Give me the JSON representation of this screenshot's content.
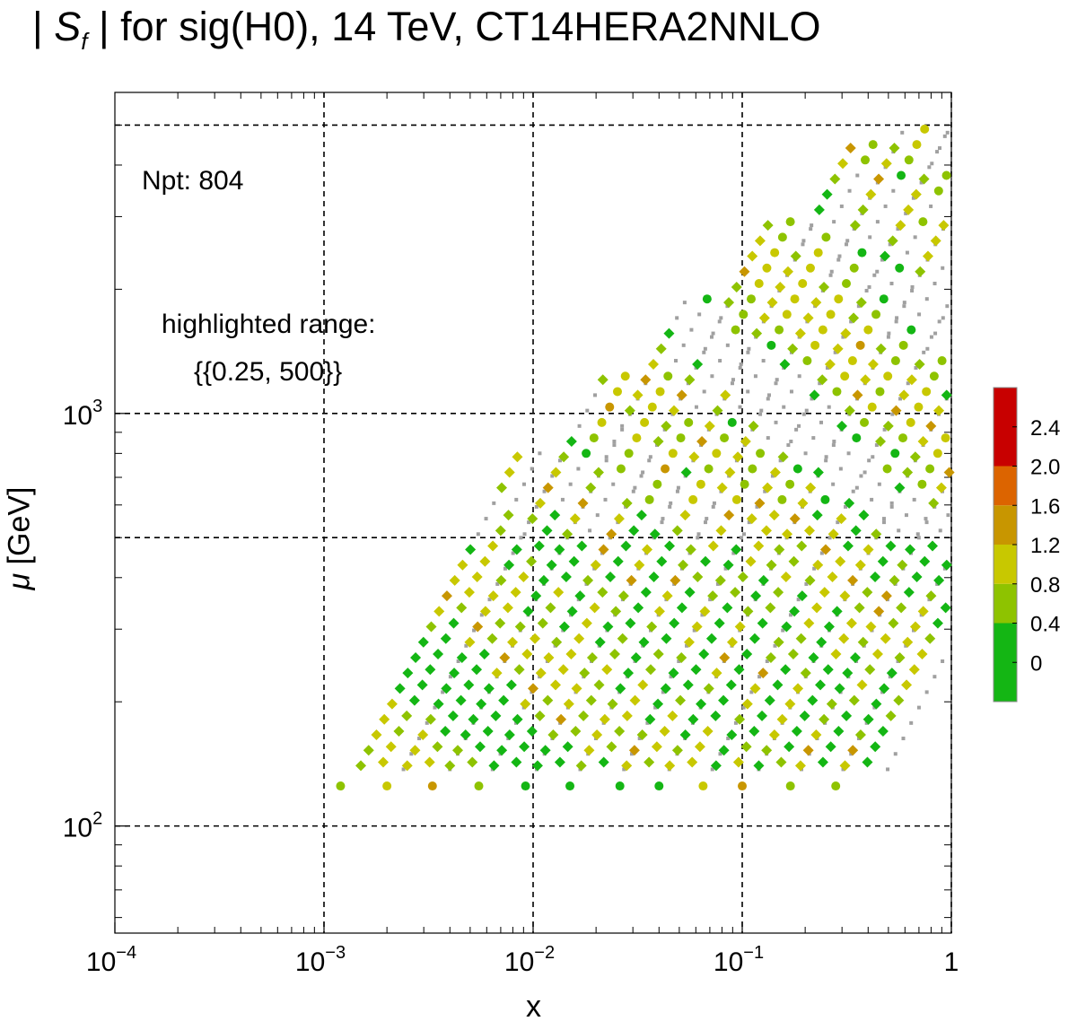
{
  "title": {
    "prefix": "| ",
    "var": "S",
    "sub": "f",
    "rest": " | for  sig(H0), 14 TeV, CT14HERA2NNLO"
  },
  "annotations": {
    "npt": "Npt: 804",
    "highlight_label": "highlighted range:",
    "highlight_value": "{{0.25, 500}}"
  },
  "axes": {
    "xlabel": "x",
    "ylabel_var": "μ",
    "ylabel_unit": " [GeV]"
  },
  "chart_data": {
    "type": "scatter",
    "x_scale": "log",
    "y_scale": "log",
    "xlim": [
      0.0001,
      1
    ],
    "ylim": [
      55,
      6000
    ],
    "x_ticks": [
      {
        "v": 0.0001,
        "b": "10",
        "e": "−4"
      },
      {
        "v": 0.001,
        "b": "10",
        "e": "−3"
      },
      {
        "v": 0.01,
        "b": "10",
        "e": "−2"
      },
      {
        "v": 0.1,
        "b": "10",
        "e": "−1"
      },
      {
        "v": 1,
        "b": "1",
        "e": ""
      }
    ],
    "y_ticks": [
      {
        "v": 100,
        "b": "10",
        "e": "2"
      },
      {
        "v": 1000,
        "b": "10",
        "e": "3"
      }
    ],
    "grid_x": [
      0.001,
      0.01,
      0.1,
      1
    ],
    "grid_y": [
      100,
      500,
      1000,
      5000
    ],
    "colorbar": {
      "bins": [
        {
          "from": -0.4,
          "to": 0.4,
          "color": "#14b614"
        },
        {
          "from": 0.4,
          "to": 0.8,
          "color": "#8ec300"
        },
        {
          "from": 0.8,
          "to": 1.2,
          "color": "#c8c800"
        },
        {
          "from": 1.2,
          "to": 1.6,
          "color": "#c89600"
        },
        {
          "from": 1.6,
          "to": 2.0,
          "color": "#dc6400"
        },
        {
          "from": 2.0,
          "to": 2.8,
          "color": "#c80000"
        }
      ],
      "ticks": [
        "2.4",
        "2.0",
        "1.6",
        "1.2",
        "0.8",
        "0.4",
        "0"
      ],
      "tick_values": [
        2.4,
        2.0,
        1.6,
        1.2,
        0.8,
        0.4,
        0.0
      ]
    },
    "grey_color": "#a0a0a0",
    "highlight": {
      "threshold": 0.25,
      "mu_max": 500
    },
    "bands": [
      {
        "shape": "circle",
        "mu": [
          125,
          125,
          125,
          125,
          125,
          125,
          125,
          125,
          125,
          125,
          125,
          125
        ],
        "x": [
          0.0012,
          0.002,
          0.0033,
          0.0055,
          0.0092,
          0.015,
          0.026,
          0.04,
          0.065,
          0.1,
          0.17,
          0.28
        ],
        "s": [
          0.6,
          0.9,
          1.4,
          0.7,
          0.3,
          0.1,
          0.2,
          0.1,
          0.8,
          1.5,
          0.7,
          0.6
        ]
      },
      {
        "shape": "diamond",
        "mu": [
          170,
          190,
          220,
          260,
          300,
          350,
          400,
          460
        ],
        "x0": 0.0014,
        "steps": [
          [
            0.0014,
            0.0022,
            0.0034,
            0.0053,
            0.0083,
            0.013,
            0.02,
            0.031
          ],
          [
            0.0023,
            0.0036,
            0.0056,
            0.0087,
            0.0136,
            0.021,
            0.033,
            0.052
          ],
          [
            0.004,
            0.0062,
            0.0097,
            0.015,
            0.024,
            0.037,
            0.058,
            0.09
          ],
          [
            0.0066,
            0.0103,
            0.016,
            0.025,
            0.039,
            0.061,
            0.095,
            0.148
          ]
        ],
        "s": [
          [
            0.1,
            0.2,
            0.7,
            0.3,
            0.6,
            0.9,
            0.8,
            0.2
          ],
          [
            0.5,
            0.9,
            1.0,
            1.3,
            1.1,
            0.8,
            0.5,
            0.3
          ],
          [
            0.7,
            1.1,
            1.3,
            1.5,
            1.2,
            0.9,
            0.6,
            0.4
          ],
          [
            0.6,
            0.8,
            1.0,
            1.2,
            0.9,
            0.7,
            0.5,
            0.2
          ]
        ]
      }
    ]
  }
}
